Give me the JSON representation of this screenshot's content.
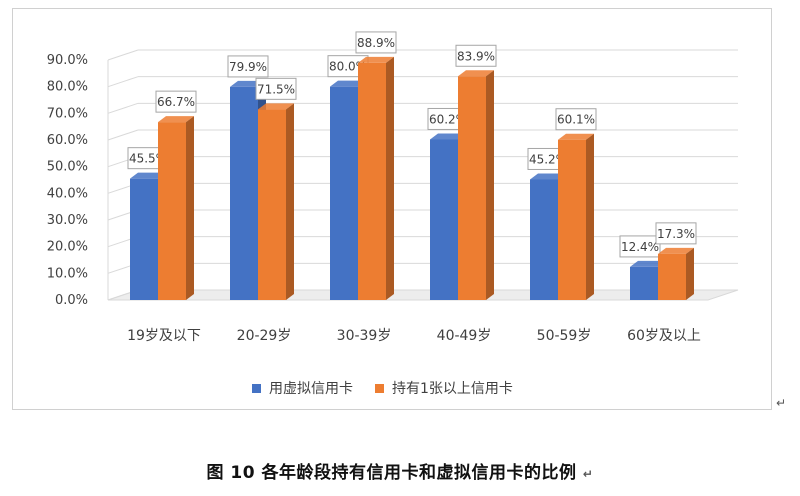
{
  "chart_data": {
    "type": "bar",
    "categories": [
      "19岁及以下",
      "20-29岁",
      "30-39岁",
      "40-49岁",
      "50-59岁",
      "60岁及以上"
    ],
    "series": [
      {
        "name": "用虚拟信用卡",
        "values": [
          45.5,
          79.9,
          80.0,
          60.2,
          45.2,
          12.4
        ],
        "labels": [
          "45.5%",
          "79.9%",
          "80.0%",
          "60.2%",
          "45.2%",
          "12.4%"
        ],
        "color": "#4472C4"
      },
      {
        "name": "持有1张以上信用卡",
        "values": [
          66.7,
          71.5,
          88.9,
          83.9,
          60.1,
          17.3
        ],
        "labels": [
          "66.7%",
          "71.5%",
          "88.9%",
          "83.9%",
          "60.1%",
          "17.3%"
        ],
        "color": "#ED7D31"
      }
    ],
    "yticks": [
      "0.0%",
      "10.0%",
      "20.0%",
      "30.0%",
      "40.0%",
      "50.0%",
      "60.0%",
      "70.0%",
      "80.0%",
      "90.0%"
    ],
    "ylim": [
      0,
      90
    ],
    "grid": true,
    "legend_position": "bottom",
    "style": "3d-clustered-column"
  },
  "caption": "图 10 各年龄段持有信用卡和虚拟信用卡的比例",
  "return_mark": "↵"
}
